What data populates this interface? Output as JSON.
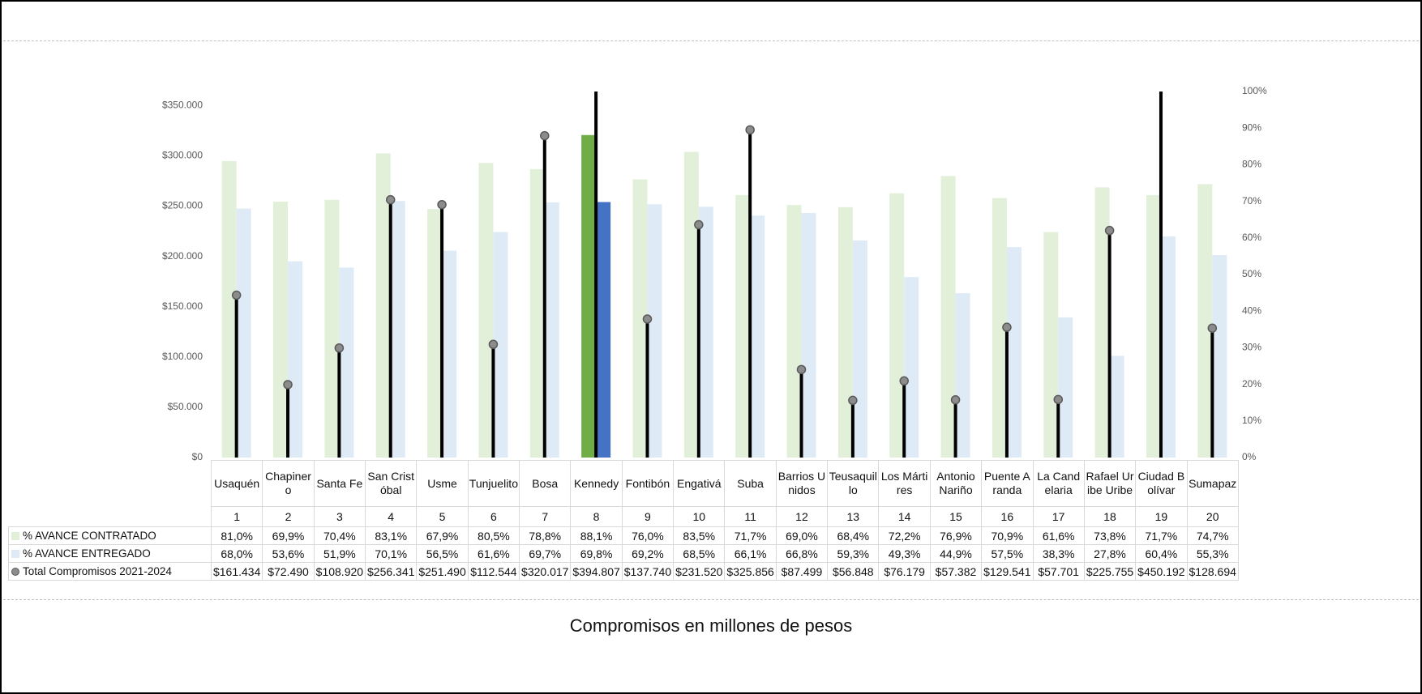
{
  "chart_data": {
    "type": "bar",
    "caption": "Compromisos en millones de pesos",
    "categories": [
      "Usaquén",
      "Chapinero",
      "Santa Fe",
      "San Cristóbal",
      "Usme",
      "Tunjuelito",
      "Bosa",
      "Kennedy",
      "Fontibón",
      "Engativá",
      "Suba",
      "Barrios Unidos",
      "Teusaquillo",
      "Los Mártires",
      "Antonio Nariño",
      "Puente Aranda",
      "La Candelaria",
      "Rafael Uribe Uribe",
      "Ciudad Bolívar",
      "Sumapaz"
    ],
    "category_codes": [
      1,
      2,
      3,
      4,
      5,
      6,
      7,
      8,
      9,
      10,
      11,
      12,
      13,
      14,
      15,
      16,
      17,
      18,
      19,
      20
    ],
    "highlight_index": 7,
    "series": [
      {
        "name": "% AVANCE CONTRATADO",
        "type": "bar",
        "axis": "y2",
        "color": "#e2f0d9",
        "highlight_color": "#70ad47",
        "values": [
          81.0,
          69.9,
          70.4,
          83.1,
          67.9,
          80.5,
          78.8,
          88.1,
          76.0,
          83.5,
          71.7,
          69.0,
          68.4,
          72.2,
          76.9,
          70.9,
          61.6,
          73.8,
          71.7,
          74.7
        ],
        "value_labels": [
          "81,0%",
          "69,9%",
          "70,4%",
          "83,1%",
          "67,9%",
          "80,5%",
          "78,8%",
          "88,1%",
          "76,0%",
          "83,5%",
          "71,7%",
          "69,0%",
          "68,4%",
          "72,2%",
          "76,9%",
          "70,9%",
          "61,6%",
          "73,8%",
          "71,7%",
          "74,7%"
        ]
      },
      {
        "name": "% AVANCE ENTREGADO",
        "type": "bar",
        "axis": "y2",
        "color": "#deebf7",
        "highlight_color": "#4472c4",
        "values": [
          68.0,
          53.6,
          51.9,
          70.1,
          56.5,
          61.6,
          69.7,
          69.8,
          69.2,
          68.5,
          66.1,
          66.8,
          59.3,
          49.3,
          44.9,
          57.5,
          38.3,
          27.8,
          60.4,
          55.3
        ],
        "value_labels": [
          "68,0%",
          "53,6%",
          "51,9%",
          "70,1%",
          "56,5%",
          "61,6%",
          "69,7%",
          "69,8%",
          "69,2%",
          "68,5%",
          "66,1%",
          "66,8%",
          "59,3%",
          "49,3%",
          "44,9%",
          "57,5%",
          "38,3%",
          "27,8%",
          "60,4%",
          "55,3%"
        ]
      },
      {
        "name": "Total Compromisos 2021-2024",
        "type": "stem",
        "axis": "y",
        "color": "#000000",
        "marker_color": "#8c8c8c",
        "values": [
          161434,
          72490,
          108920,
          256341,
          251490,
          112544,
          320017,
          394807,
          137740,
          231520,
          325856,
          87499,
          56848,
          76179,
          57382,
          129541,
          57701,
          225755,
          450192,
          128694
        ],
        "value_labels": [
          "$161.434",
          "$72.490",
          "$108.920",
          "$256.341",
          "$251.490",
          "$112.544",
          "$320.017",
          "$394.807",
          "$137.740",
          "$231.520",
          "$325.856",
          "$87.499",
          "$56.848",
          "$76.179",
          "$57.382",
          "$129.541",
          "$57.701",
          "$225.755",
          "$450.192",
          "$128.694"
        ]
      }
    ],
    "ylim": [
      0,
      364000
    ],
    "yticks": [
      {
        "value": 0,
        "label": "$0"
      },
      {
        "value": 50000,
        "label": "$50.000"
      },
      {
        "value": 100000,
        "label": "$100.000"
      },
      {
        "value": 150000,
        "label": "$150.000"
      },
      {
        "value": 200000,
        "label": "$200.000"
      },
      {
        "value": 250000,
        "label": "$250.000"
      },
      {
        "value": 300000,
        "label": "$300.000"
      },
      {
        "value": 350000,
        "label": "$350.000"
      }
    ],
    "y2lim": [
      0,
      100
    ],
    "y2ticks": [
      {
        "value": 0,
        "label": "0%"
      },
      {
        "value": 10,
        "label": "10%"
      },
      {
        "value": 20,
        "label": "20%"
      },
      {
        "value": 30,
        "label": "30%"
      },
      {
        "value": 40,
        "label": "40%"
      },
      {
        "value": 50,
        "label": "50%"
      },
      {
        "value": 60,
        "label": "60%"
      },
      {
        "value": 70,
        "label": "70%"
      },
      {
        "value": 80,
        "label": "80%"
      },
      {
        "value": 90,
        "label": "90%"
      },
      {
        "value": 100,
        "label": "100%"
      }
    ],
    "grid": false
  }
}
